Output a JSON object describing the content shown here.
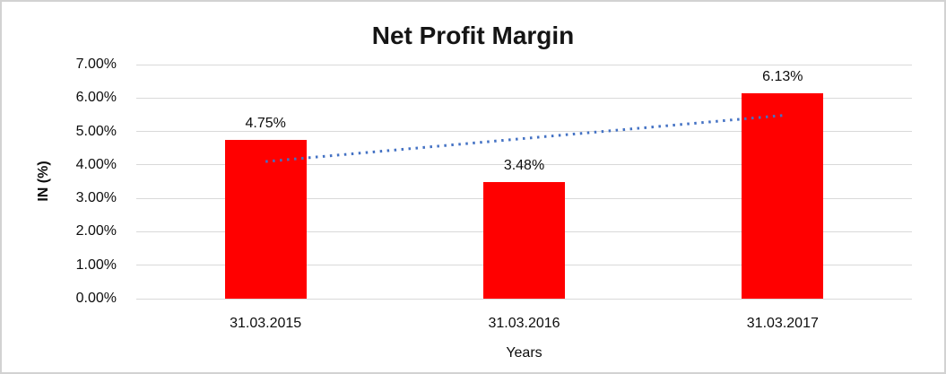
{
  "chart_data": {
    "type": "bar",
    "title": "Net Profit Margin",
    "categories": [
      "31.03.2015",
      "31.03.2016",
      "31.03.2017"
    ],
    "values": [
      4.75,
      3.48,
      6.13
    ],
    "data_labels": [
      "4.75%",
      "3.48%",
      "6.13%"
    ],
    "xlabel": "Years",
    "ylabel": "IN (%)",
    "ylim": [
      0,
      7
    ],
    "yticks": [
      "0.00%",
      "1.00%",
      "2.00%",
      "3.00%",
      "4.00%",
      "5.00%",
      "6.00%",
      "7.00%"
    ],
    "grid": true,
    "legend": "none",
    "bar_color": "#ff0000",
    "gridline_color": "#d9d9d9",
    "trendline": {
      "type": "linear",
      "style": "dotted",
      "color": "#4472c4",
      "start_value": 4.1,
      "end_value": 5.48
    }
  }
}
